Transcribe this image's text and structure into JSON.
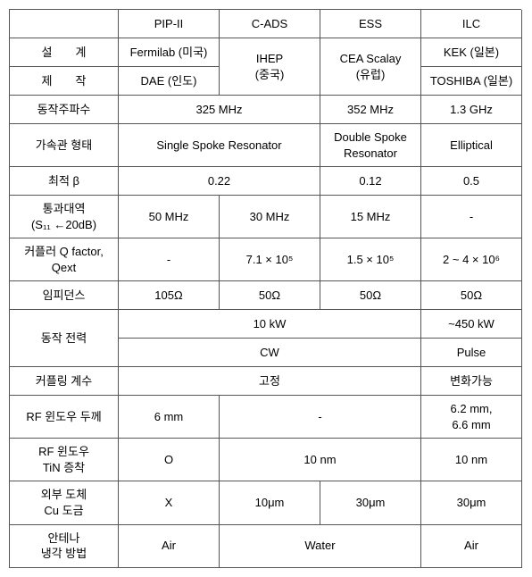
{
  "headers": [
    "",
    "PIP-II",
    "C-ADS",
    "ESS",
    "ILC"
  ],
  "rows": {
    "design_label": "설  계",
    "make_label": "제  작",
    "design_pip": "Fermilab (미국)",
    "design_cads": "IHEP\n(중국)",
    "design_ess": "CEA Scalay\n(유럽)",
    "design_ilc": "KEK (일본)",
    "make_pip": "DAE (인도)",
    "make_ilc": "TOSHIBA (일본)",
    "freq_label": "동작주파수",
    "freq_12": "325 MHz",
    "freq_3": "352 MHz",
    "freq_4": "1.3 GHz",
    "cavtype_label": "가속관 형태",
    "cavtype_12": "Single Spoke Resonator",
    "cavtype_3": "Double Spoke\nResonator",
    "cavtype_4": "Elliptical",
    "beta_label": "최적 β",
    "beta_12": "0.22",
    "beta_3": "0.12",
    "beta_4": "0.5",
    "bw_label_a": "통과대역",
    "bw_label_b": "(S₁₁ ←20dB)",
    "bw_1": "50 MHz",
    "bw_2": "30 MHz",
    "bw_3": "15 MHz",
    "bw_4": "-",
    "q_label_a": "커플러 Q factor,",
    "q_label_b": "Qext",
    "q_1": "-",
    "q_2": "7.1 × 10⁵",
    "q_3": "1.5 × 10⁵",
    "q_4": "2 ~ 4 × 10⁶",
    "imp_label": "임피던스",
    "imp_1": "105Ω",
    "imp_2": "50Ω",
    "imp_3": "50Ω",
    "imp_4": "50Ω",
    "pow_label": "동작 전력",
    "pow_top_123": "10 kW",
    "pow_top_4": "~450 kW",
    "pow_bot_123": "CW",
    "pow_bot_4": "Pulse",
    "coup_label": "커플링 계수",
    "coup_123": "고정",
    "coup_4": "변화가능",
    "win_label": "RF 윈도우 두께",
    "win_1": "6 mm",
    "win_23": "-",
    "win_4": "6.2 mm,\n6.6 mm",
    "tin_label": "RF 윈도우\nTiN 증착",
    "tin_1": "O",
    "tin_23": "10 nm",
    "tin_4": "10 nm",
    "cu_label": "외부 도체\nCu 도금",
    "cu_1": "X",
    "cu_2": "10μm",
    "cu_3": "30μm",
    "cu_4": "30μm",
    "cool_label": "안테나\n냉각 방법",
    "cool_1": "Air",
    "cool_23": "Water",
    "cool_4": "Air"
  }
}
